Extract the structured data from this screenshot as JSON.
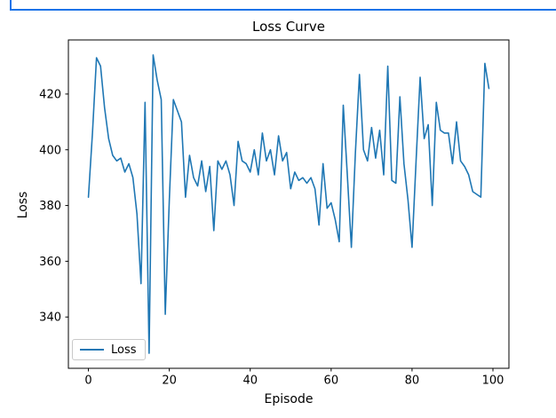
{
  "top_fragment": {
    "kind": "partially-visible focused input box",
    "border_color": "#1a73e8",
    "value": ""
  },
  "colors": {
    "line": "#1f77b4",
    "top_border": "#1a73e8",
    "axis": "#000000",
    "legend_border": "#c9c9c9",
    "background": "#ffffff"
  },
  "chart_data": {
    "type": "line",
    "title": "Loss Curve",
    "xlabel": "Episode",
    "ylabel": "Loss",
    "grid": false,
    "legend_position": "lower left",
    "xlim": [
      -4.95,
      103.95
    ],
    "ylim": [
      321.6,
      439.4
    ],
    "xticks": [
      0,
      20,
      40,
      60,
      80,
      100
    ],
    "yticks": [
      340,
      360,
      380,
      400,
      420
    ],
    "x": [
      0,
      1,
      2,
      3,
      4,
      5,
      6,
      7,
      8,
      9,
      10,
      11,
      12,
      13,
      14,
      15,
      16,
      17,
      18,
      19,
      20,
      21,
      22,
      23,
      24,
      25,
      26,
      27,
      28,
      29,
      30,
      31,
      32,
      33,
      34,
      35,
      36,
      37,
      38,
      39,
      40,
      41,
      42,
      43,
      44,
      45,
      46,
      47,
      48,
      49,
      50,
      51,
      52,
      53,
      54,
      55,
      56,
      57,
      58,
      59,
      60,
      61,
      62,
      63,
      64,
      65,
      66,
      67,
      68,
      69,
      70,
      71,
      72,
      73,
      74,
      75,
      76,
      77,
      78,
      79,
      80,
      81,
      82,
      83,
      84,
      85,
      86,
      87,
      88,
      89,
      90,
      91,
      92,
      93,
      94,
      95,
      96,
      97,
      98,
      99
    ],
    "series": [
      {
        "name": "Loss",
        "color": "#1f77b4",
        "values": [
          383,
          406,
          433,
          430,
          415,
          404,
          398,
          396,
          397,
          392,
          395,
          390,
          377,
          352,
          417,
          327,
          434,
          425,
          418,
          341,
          382,
          418,
          414,
          410,
          383,
          398,
          390,
          387,
          396,
          385,
          394,
          371,
          396,
          393,
          396,
          391,
          380,
          403,
          396,
          395,
          392,
          400,
          391,
          406,
          396,
          400,
          391,
          405,
          396,
          399,
          386,
          392,
          389,
          390,
          388,
          390,
          386,
          373,
          395,
          379,
          381,
          375,
          367,
          416,
          391,
          365,
          399,
          427,
          400,
          396,
          408,
          397,
          407,
          391,
          430,
          389,
          388,
          419,
          395,
          382,
          365,
          396,
          426,
          404,
          409,
          380,
          417,
          407,
          406,
          406,
          395,
          410,
          396,
          394,
          391,
          385,
          384,
          383,
          431,
          422
        ]
      }
    ]
  }
}
